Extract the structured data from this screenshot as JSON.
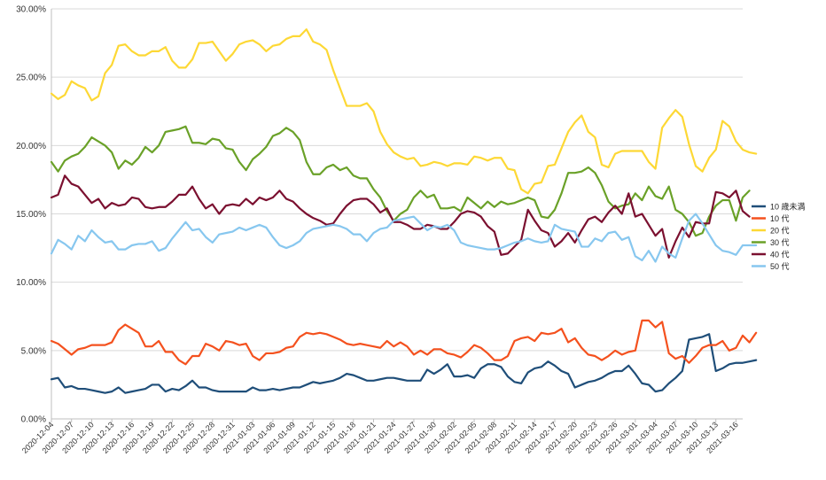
{
  "chart_data": {
    "type": "line",
    "y_format": "percent",
    "ylim": [
      0,
      30
    ],
    "y_ticks": [
      0,
      5,
      10,
      15,
      20,
      25,
      30
    ],
    "y_tick_labels": [
      "0.00%",
      "5.00%",
      "10.00%",
      "15.00%",
      "20.00%",
      "25.00%",
      "30.00%"
    ],
    "grid": true,
    "legend_position": "right",
    "x_start": "2020-12-04",
    "x_end": "2021-03-17",
    "x_tick_labels": [
      "2020-12-04",
      "2020-12-07",
      "2020-12-10",
      "2020-12-13",
      "2020-12-16",
      "2020-12-19",
      "2020-12-22",
      "2020-12-25",
      "2020-12-28",
      "2020-12-31",
      "2021-01-03",
      "2021-01-06",
      "2021-01-09",
      "2021-01-12",
      "2021-01-15",
      "2021-01-18",
      "2021-01-21",
      "2021-01-24",
      "2021-01-27",
      "2021-01-30",
      "2021-02-02",
      "2021-02-05",
      "2021-02-08",
      "2021-02-11",
      "2021-02-14",
      "2021-02-17",
      "2021-02-20",
      "2021-02-23",
      "2021-02-26",
      "2021-03-01",
      "2021-03-04",
      "2021-03-07",
      "2021-03-10",
      "2021-03-13",
      "2021-03-16"
    ],
    "series": [
      {
        "name": "10 歳未満",
        "color": "#1f4e79",
        "values": [
          2.9,
          3.0,
          2.3,
          2.4,
          2.2,
          2.2,
          2.1,
          2.0,
          1.9,
          2.0,
          2.3,
          1.9,
          2.0,
          2.1,
          2.2,
          2.5,
          2.5,
          2.0,
          2.2,
          2.1,
          2.4,
          2.8,
          2.3,
          2.3,
          2.1,
          2.0,
          2.0,
          2.0,
          2.0,
          2.0,
          2.3,
          2.1,
          2.1,
          2.2,
          2.1,
          2.2,
          2.3,
          2.3,
          2.5,
          2.7,
          2.6,
          2.7,
          2.8,
          3.0,
          3.3,
          3.2,
          3.0,
          2.8,
          2.8,
          2.9,
          3.0,
          3.0,
          2.9,
          2.8,
          2.8,
          2.8,
          3.6,
          3.3,
          3.6,
          4.0,
          3.1,
          3.1,
          3.2,
          3.0,
          3.7,
          4.0,
          4.0,
          3.8,
          3.1,
          2.7,
          2.6,
          3.4,
          3.7,
          3.8,
          4.2,
          3.9,
          3.5,
          3.3,
          2.3,
          2.5,
          2.7,
          2.8,
          3.0,
          3.3,
          3.5,
          3.5,
          3.9,
          3.3,
          2.6,
          2.5,
          2.0,
          2.1,
          2.6,
          3.0,
          3.5,
          5.8,
          5.9,
          6.0,
          6.2,
          3.5,
          3.7,
          4.0,
          4.1,
          4.1,
          4.2,
          4.3
        ]
      },
      {
        "name": "10 代",
        "color": "#f4511e",
        "values": [
          5.7,
          5.5,
          5.1,
          4.7,
          5.1,
          5.2,
          5.4,
          5.4,
          5.4,
          5.6,
          6.5,
          6.9,
          6.6,
          6.3,
          5.3,
          5.3,
          5.7,
          4.9,
          4.9,
          4.3,
          4.0,
          4.6,
          4.6,
          5.5,
          5.3,
          5.0,
          5.7,
          5.6,
          5.4,
          5.5,
          4.6,
          4.3,
          4.8,
          4.8,
          4.9,
          5.2,
          5.3,
          6.0,
          6.3,
          6.2,
          6.3,
          6.2,
          6.0,
          5.8,
          5.5,
          5.4,
          5.5,
          5.4,
          5.3,
          5.2,
          5.7,
          5.3,
          5.6,
          5.3,
          4.7,
          5.0,
          4.7,
          5.1,
          5.1,
          4.8,
          4.7,
          4.5,
          4.9,
          5.4,
          5.2,
          4.8,
          4.3,
          4.3,
          4.6,
          5.7,
          5.9,
          6.0,
          5.7,
          6.3,
          6.2,
          6.3,
          6.6,
          5.6,
          5.9,
          5.2,
          4.7,
          4.6,
          4.3,
          4.6,
          5.0,
          4.7,
          4.9,
          5.0,
          7.2,
          7.2,
          6.7,
          7.1,
          4.8,
          4.4,
          4.6,
          4.1,
          4.6,
          5.2,
          5.4,
          5.4,
          5.7,
          5.0,
          5.2,
          6.1,
          5.6,
          6.3
        ]
      },
      {
        "name": "20 代",
        "color": "#fdd835",
        "values": [
          23.8,
          23.4,
          23.7,
          24.7,
          24.4,
          24.2,
          23.3,
          23.6,
          25.3,
          25.9,
          27.3,
          27.4,
          26.9,
          26.6,
          26.6,
          26.9,
          26.9,
          27.2,
          26.2,
          25.7,
          25.7,
          26.3,
          27.5,
          27.5,
          27.6,
          26.9,
          26.2,
          26.7,
          27.4,
          27.6,
          27.7,
          27.4,
          26.9,
          27.3,
          27.4,
          27.8,
          28.0,
          28.0,
          28.5,
          27.6,
          27.4,
          27.0,
          25.5,
          24.2,
          22.9,
          22.9,
          22.9,
          23.1,
          22.5,
          21.0,
          20.1,
          19.5,
          19.2,
          19.0,
          19.1,
          18.5,
          18.6,
          18.8,
          18.7,
          18.5,
          18.7,
          18.7,
          18.6,
          19.2,
          19.1,
          18.9,
          19.1,
          19.1,
          18.3,
          18.2,
          16.8,
          16.5,
          17.2,
          17.3,
          18.5,
          18.6,
          19.8,
          21.0,
          21.7,
          22.2,
          21.0,
          20.6,
          18.6,
          18.4,
          19.4,
          19.6,
          19.6,
          19.6,
          19.6,
          18.8,
          18.3,
          21.3,
          22.0,
          22.6,
          22.1,
          20.1,
          18.5,
          18.1,
          19.1,
          19.7,
          21.8,
          21.4,
          20.3,
          19.7,
          19.5,
          19.4
        ]
      },
      {
        "name": "30 代",
        "color": "#6aa128",
        "values": [
          18.8,
          18.1,
          18.9,
          19.2,
          19.4,
          19.9,
          20.6,
          20.3,
          20.0,
          19.5,
          18.3,
          18.9,
          18.6,
          19.1,
          19.9,
          19.5,
          20.0,
          21.0,
          21.1,
          21.2,
          21.4,
          20.2,
          20.2,
          20.1,
          20.5,
          20.4,
          19.8,
          19.7,
          18.8,
          18.2,
          19.0,
          19.4,
          19.9,
          20.7,
          20.9,
          21.3,
          21.0,
          20.4,
          18.8,
          17.9,
          17.9,
          18.4,
          18.6,
          18.2,
          18.4,
          17.8,
          17.6,
          17.6,
          16.8,
          16.2,
          15.2,
          14.5,
          15.0,
          15.3,
          16.2,
          16.7,
          16.2,
          16.4,
          15.4,
          15.4,
          15.5,
          15.2,
          16.2,
          15.8,
          15.4,
          15.9,
          15.5,
          15.9,
          15.7,
          15.8,
          16.0,
          16.2,
          16.0,
          14.8,
          14.7,
          15.3,
          16.5,
          18.0,
          18.0,
          18.1,
          18.4,
          18.0,
          17.1,
          15.9,
          15.4,
          15.6,
          15.7,
          16.5,
          16.0,
          17.0,
          16.3,
          16.1,
          17.0,
          15.3,
          15.0,
          14.4,
          13.4,
          13.6,
          14.8,
          15.6,
          16.0,
          16.0,
          14.5,
          16.2,
          16.7
        ]
      },
      {
        "name": "40 代",
        "color": "#7b1030",
        "values": [
          16.2,
          16.4,
          17.8,
          17.2,
          17.0,
          16.4,
          15.8,
          16.1,
          15.4,
          15.8,
          15.6,
          15.7,
          16.2,
          16.1,
          15.5,
          15.4,
          15.5,
          15.5,
          15.9,
          16.4,
          16.4,
          17.0,
          16.1,
          15.4,
          15.7,
          15.0,
          15.6,
          15.7,
          15.6,
          16.1,
          15.7,
          16.2,
          16.0,
          16.2,
          16.7,
          16.1,
          15.9,
          15.4,
          15.0,
          14.7,
          14.5,
          14.2,
          14.3,
          15.0,
          15.6,
          16.0,
          16.1,
          16.1,
          15.7,
          15.1,
          15.4,
          14.4,
          14.4,
          14.2,
          13.9,
          13.9,
          14.2,
          14.1,
          13.9,
          13.9,
          14.4,
          15.0,
          15.2,
          15.1,
          14.8,
          14.1,
          13.7,
          12.0,
          12.1,
          12.6,
          13.1,
          15.3,
          14.5,
          13.8,
          13.6,
          12.6,
          13.0,
          13.6,
          12.9,
          13.8,
          14.6,
          14.8,
          14.4,
          15.1,
          15.6,
          15.0,
          16.5,
          14.8,
          15.0,
          14.2,
          13.4,
          13.9,
          11.8,
          13.0,
          14.0,
          13.3,
          14.4,
          14.3,
          14.3,
          16.6,
          16.5,
          16.2,
          16.7,
          15.2,
          14.8
        ]
      },
      {
        "name": "50 代",
        "color": "#87c7ef",
        "values": [
          12.1,
          13.1,
          12.8,
          12.4,
          13.4,
          13.0,
          13.8,
          13.3,
          12.9,
          13.0,
          12.4,
          12.4,
          12.7,
          12.8,
          12.8,
          13.0,
          12.3,
          12.5,
          13.2,
          13.8,
          14.4,
          13.8,
          13.9,
          13.3,
          12.9,
          13.5,
          13.6,
          13.7,
          14.0,
          13.8,
          14.0,
          14.2,
          14.0,
          13.3,
          12.7,
          12.5,
          12.7,
          13.0,
          13.6,
          13.9,
          14.0,
          14.1,
          14.2,
          14.1,
          13.9,
          13.5,
          13.5,
          13.0,
          13.6,
          13.9,
          14.0,
          14.5,
          14.6,
          14.7,
          14.8,
          14.3,
          13.8,
          14.1,
          14.0,
          14.2,
          13.8,
          12.9,
          12.7,
          12.6,
          12.5,
          12.4,
          12.4,
          12.5,
          12.7,
          12.9,
          13.0,
          13.2,
          13.0,
          12.9,
          13.0,
          14.2,
          13.9,
          13.8,
          13.7,
          12.6,
          12.6,
          13.2,
          13.0,
          13.6,
          13.7,
          13.1,
          13.3,
          11.9,
          11.6,
          12.3,
          11.5,
          12.6,
          12.1,
          11.8,
          13.2,
          14.5,
          15.0,
          14.3,
          13.5,
          12.7,
          12.3,
          12.2,
          12.0,
          12.7,
          12.7,
          12.7
        ]
      }
    ]
  }
}
